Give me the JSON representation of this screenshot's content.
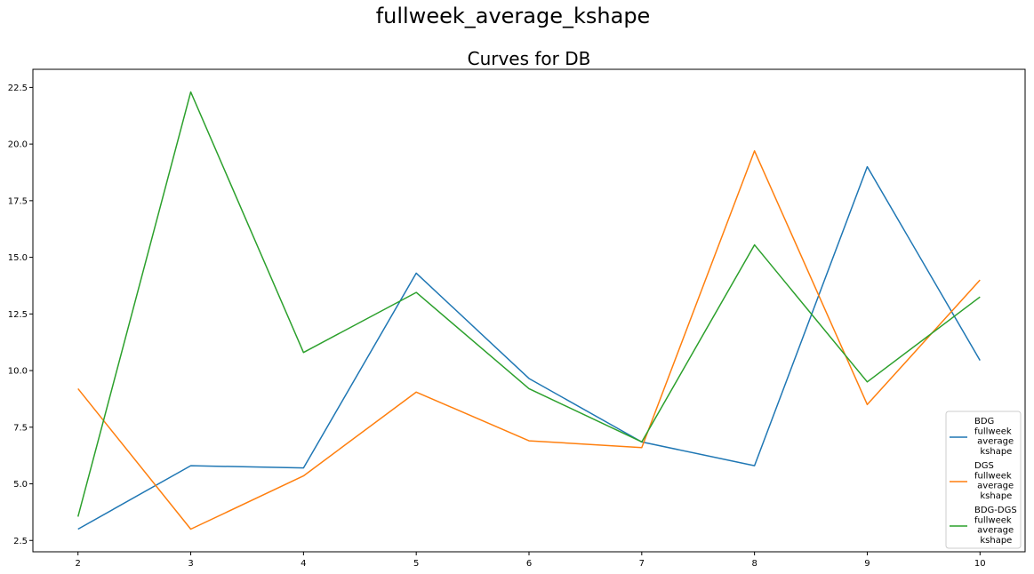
{
  "figure": {
    "suptitle": "fullweek_average_kshape",
    "title": "Curves for DB"
  },
  "chart_data": {
    "type": "line",
    "title": "Curves for DB",
    "suptitle": "fullweek_average_kshape",
    "xlabel": "",
    "ylabel": "",
    "x": [
      2,
      3,
      4,
      5,
      6,
      7,
      8,
      9,
      10
    ],
    "xlim": [
      1.6,
      10.4
    ],
    "ylim": [
      2.0,
      23.3
    ],
    "xticks": [
      2,
      3,
      4,
      5,
      6,
      7,
      8,
      9,
      10
    ],
    "yticks": [
      2.5,
      5.0,
      7.5,
      10.0,
      12.5,
      15.0,
      17.5,
      20.0,
      22.5
    ],
    "ytick_labels": [
      "2.5",
      "5.0",
      "7.5",
      "10.0",
      "12.5",
      "15.0",
      "17.5",
      "20.0",
      "22.5"
    ],
    "grid": false,
    "legend_position": "lower-right",
    "series": [
      {
        "name": "BDG\nfullweek\n average\n  kshape",
        "color": "#1f77b4",
        "values": [
          3.0,
          5.8,
          5.7,
          14.3,
          9.65,
          6.85,
          5.8,
          19.0,
          10.45
        ]
      },
      {
        "name": "DGS\nfullweek\n average\n  kshape",
        "color": "#ff7f0e",
        "values": [
          9.2,
          3.0,
          5.35,
          9.05,
          6.9,
          6.6,
          19.7,
          8.5,
          14.0
        ]
      },
      {
        "name": "BDG-DGS\nfullweek\n average\n  kshape",
        "color": "#2ca02c",
        "values": [
          3.55,
          22.3,
          10.8,
          13.45,
          9.2,
          6.85,
          15.55,
          9.5,
          13.25
        ]
      }
    ]
  }
}
